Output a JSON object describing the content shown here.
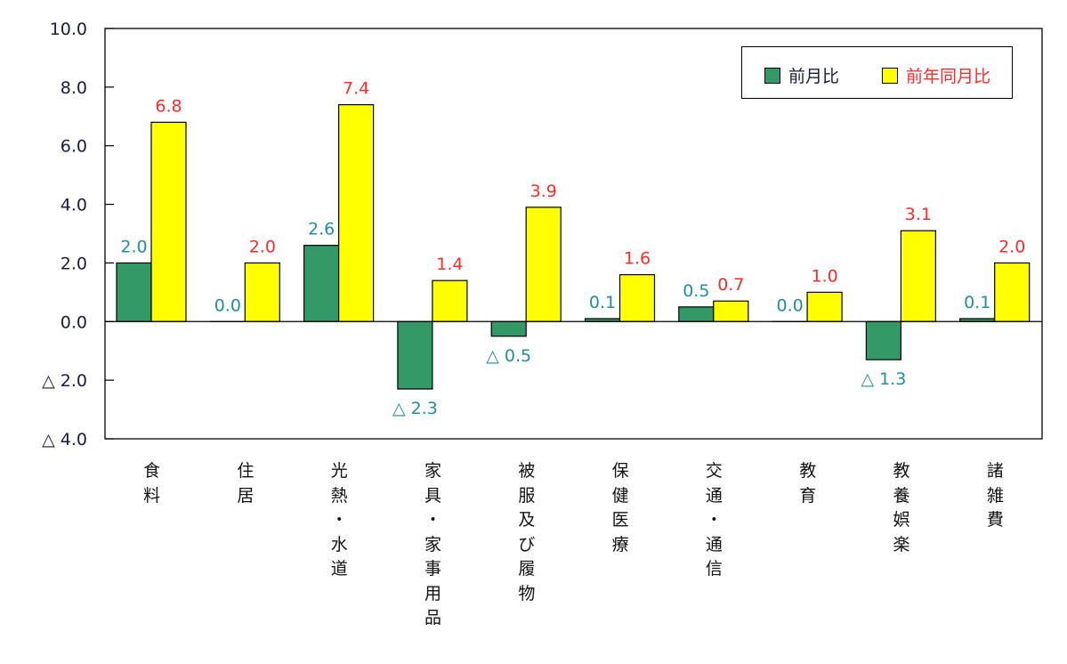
{
  "chart_data": {
    "type": "bar",
    "categories": [
      "食料",
      "住居",
      "光熱・水道",
      "家具・家事用品",
      "被服及び履物",
      "保健医療",
      "交通・通信",
      "教育",
      "教養娯楽",
      "諸雑費"
    ],
    "series": [
      {
        "name": "前月比",
        "values": [
          2.0,
          0.0,
          2.6,
          -2.3,
          -0.5,
          0.1,
          0.5,
          0.0,
          -1.3,
          0.1
        ],
        "color": "#339966",
        "label_color": "#1F8F9F"
      },
      {
        "name": "前年同月比",
        "values": [
          6.8,
          2.0,
          7.4,
          1.4,
          3.9,
          1.6,
          0.7,
          1.0,
          3.1,
          2.0
        ],
        "color": "#FFFF00",
        "label_color": "#FF2A2A"
      }
    ],
    "ylim": [
      -4.0,
      10.0
    ],
    "yticks": [
      10.0,
      8.0,
      6.0,
      4.0,
      2.0,
      0.0,
      -2.0,
      -4.0
    ],
    "ytick_labels": [
      "10.0",
      "8.0",
      "6.0",
      "4.0",
      "2.0",
      "0.0",
      "△ 2.0",
      "△ 4.0"
    ],
    "negative_prefix": "△ ",
    "grid": false,
    "legend_position": "top-right",
    "xlabel": "",
    "ylabel": "",
    "title": ""
  }
}
